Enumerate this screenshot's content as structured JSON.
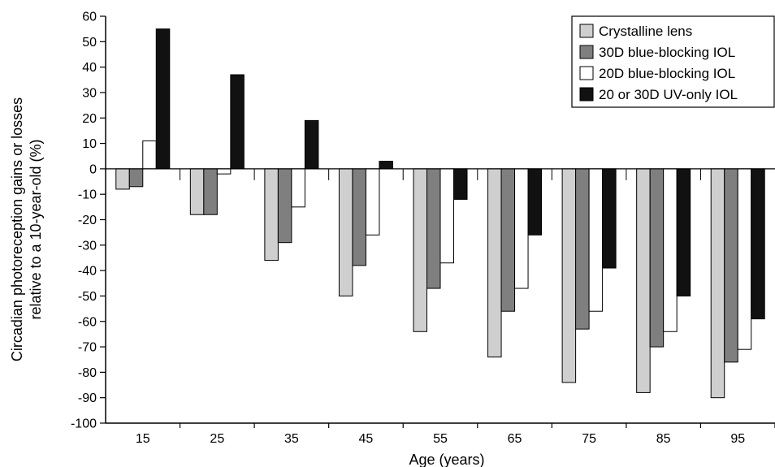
{
  "chart_data": {
    "type": "bar",
    "title": "",
    "xlabel": "Age (years)",
    "ylabel_lines": [
      "Circadian photoreception gains or losses",
      "relative to a 10-year-old (%)"
    ],
    "categories": [
      "15",
      "25",
      "35",
      "45",
      "55",
      "65",
      "75",
      "85",
      "95"
    ],
    "ylim": [
      -100,
      60
    ],
    "yticks": [
      60,
      50,
      40,
      30,
      20,
      10,
      0,
      -10,
      -20,
      -30,
      -40,
      -50,
      -60,
      -70,
      -80,
      -90,
      -100
    ],
    "grid": false,
    "legend_position": "top-right",
    "series": [
      {
        "name": "Crystalline lens",
        "color": "#cfcfcf",
        "values": [
          -8,
          -18,
          -36,
          -50,
          -64,
          -74,
          -84,
          -88,
          -90
        ]
      },
      {
        "name": "30D blue-blocking IOL",
        "color": "#7f7f7f",
        "values": [
          -7,
          -18,
          -29,
          -38,
          -47,
          -56,
          -63,
          -70,
          -76
        ]
      },
      {
        "name": "20D blue-blocking IOL",
        "color": "#ffffff",
        "values": [
          11,
          -2,
          -15,
          -26,
          -37,
          -47,
          -56,
          -64,
          -71
        ]
      },
      {
        "name": "20 or 30D UV-only IOL",
        "color": "#111111",
        "values": [
          55,
          37,
          19,
          3,
          -12,
          -26,
          -39,
          -50,
          -59
        ]
      }
    ]
  }
}
